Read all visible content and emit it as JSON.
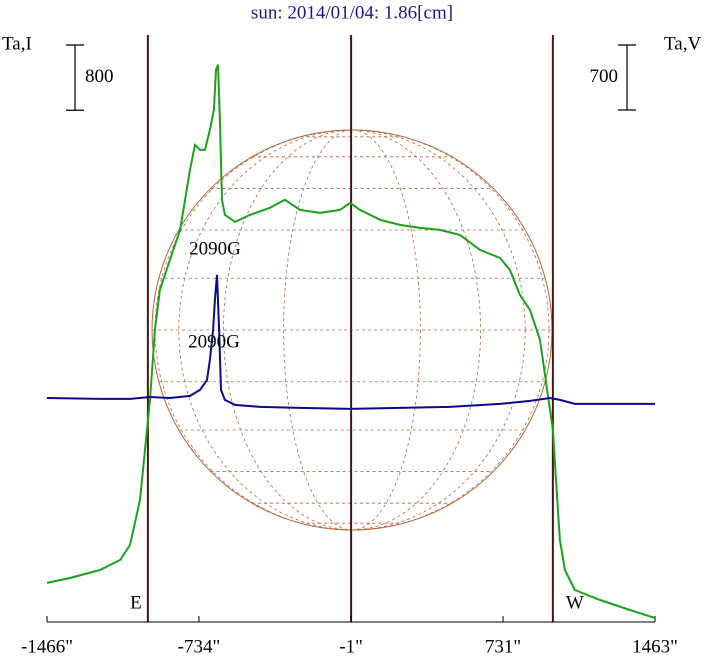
{
  "chart_data": {
    "type": "line",
    "title": "sun: 2014/01/04: 1.86[cm]",
    "y_label": "Ta,I",
    "y2_label": "Ta,V",
    "y_scale_bar": 800,
    "y2_scale_bar": 700,
    "xlim": [
      -1466,
      1463
    ],
    "xticks": [
      {
        "value": -1466,
        "label": "-1466\""
      },
      {
        "value": -734,
        "label": "-734\""
      },
      {
        "value": -1,
        "label": "-1\""
      },
      {
        "value": 731,
        "label": "731\""
      },
      {
        "value": 1463,
        "label": "1463\""
      }
    ],
    "ylim": [
      0,
      7200
    ],
    "y2lim": [
      0,
      6320
    ],
    "markers": [
      {
        "x": -980,
        "label": "E"
      },
      {
        "x": -1
      },
      {
        "x": 971,
        "label": "W"
      }
    ],
    "series": [
      {
        "color": "#1aa31a",
        "x": [
          -1466,
          -1355,
          -1211,
          -1114,
          -1066,
          -1018,
          -989,
          -970,
          -946,
          -922,
          -874,
          -825,
          -777,
          -753,
          -729,
          -705,
          -681,
          -662,
          -652,
          -642,
          -633,
          -623,
          -609,
          -560,
          -488,
          -392,
          -320,
          -247,
          -151,
          -55,
          -6,
          42,
          138,
          234,
          331,
          427,
          523,
          620,
          716,
          764,
          812,
          861,
          909,
          933,
          957,
          971,
          986,
          1005,
          1029,
          1077,
          1198,
          1342,
          1463
        ],
        "values": [
          479,
          540,
          638,
          761,
          945,
          1497,
          2233,
          2724,
          3583,
          4074,
          4442,
          4810,
          5546,
          5853,
          5791,
          5791,
          6037,
          6282,
          6773,
          6834,
          6160,
          5178,
          4994,
          4908,
          4994,
          5080,
          5178,
          5055,
          5018,
          5055,
          5141,
          5055,
          4933,
          4871,
          4834,
          4810,
          4748,
          4564,
          4466,
          4319,
          4012,
          3828,
          3460,
          3031,
          2601,
          2356,
          1742,
          1006,
          638,
          393,
          270,
          147,
          49
        ],
        "annotation": "2090G"
      },
      {
        "color": "#0a0a8c",
        "axis": "y2",
        "x": [
          -1466,
          -1211,
          -1066,
          -970,
          -874,
          -777,
          -729,
          -695,
          -681,
          -666,
          -657,
          -647,
          -637,
          -628,
          -609,
          -560,
          -440,
          -247,
          -6,
          234,
          475,
          716,
          861,
          957,
          1005,
          1077,
          1463
        ],
        "values": [
          2412,
          2402,
          2402,
          2423,
          2412,
          2434,
          2499,
          2606,
          2822,
          3145,
          3468,
          3737,
          3145,
          2499,
          2391,
          2337,
          2316,
          2305,
          2294,
          2305,
          2316,
          2348,
          2380,
          2412,
          2391,
          2348,
          2348
        ],
        "annotation": "2090G"
      }
    ]
  }
}
